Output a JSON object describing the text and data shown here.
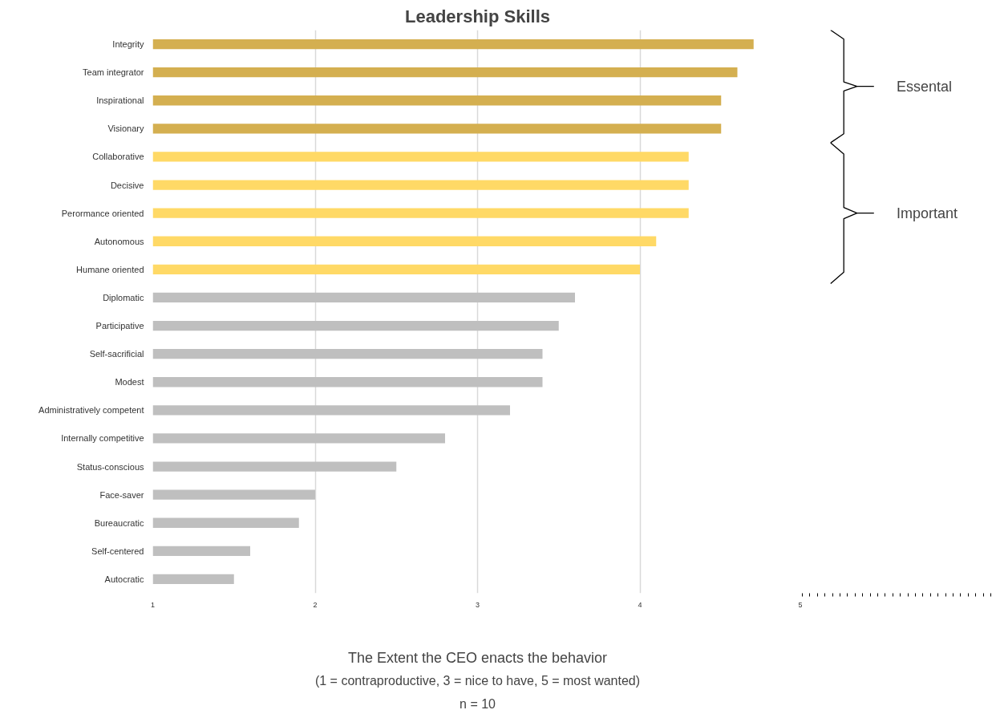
{
  "chart_data": {
    "type": "bar",
    "orientation": "horizontal",
    "title": "Leadership Skills",
    "xlabel": "The Extent the CEO enacts the behavior",
    "categories": [
      "Integrity",
      "Team integrator",
      "Inspirational",
      "Visionary",
      "Collaborative",
      "Decisive",
      "Perormance oriented",
      "Autonomous",
      "Humane oriented",
      "Diplomatic",
      "Participative",
      "Self-sacrificial",
      "Modest",
      "Administratively competent",
      "Internally competitive",
      "Status-conscious",
      "Face-saver",
      "Bureaucratic",
      "Self-centered",
      "Autocratic"
    ],
    "values": [
      4.7,
      4.6,
      4.5,
      4.5,
      4.3,
      4.3,
      4.3,
      4.1,
      4.0,
      3.6,
      3.5,
      3.4,
      3.4,
      3.2,
      2.8,
      2.5,
      2.0,
      1.9,
      1.6,
      1.5
    ],
    "colors": [
      "#d4af50",
      "#d4af50",
      "#d4af50",
      "#d4af50",
      "#ffd966",
      "#ffd966",
      "#ffd966",
      "#ffd966",
      "#ffd966",
      "#bfbfbf",
      "#bfbfbf",
      "#bfbfbf",
      "#bfbfbf",
      "#bfbfbf",
      "#bfbfbf",
      "#bfbfbf",
      "#bfbfbf",
      "#bfbfbf",
      "#bfbfbf",
      "#bfbfbf"
    ],
    "xlim": [
      1,
      5
    ],
    "xticks": [
      1,
      2,
      3,
      4,
      5
    ],
    "grid": "x",
    "annotations": [
      "Essental",
      "Important",
      "(1 = contraproductive, 3 = nice to have, 5 = most wanted)",
      "n = 10"
    ]
  }
}
